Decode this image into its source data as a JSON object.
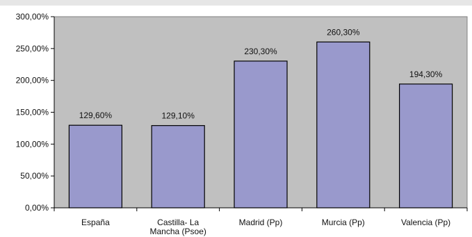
{
  "chart_data": {
    "type": "bar",
    "title": "",
    "xlabel": "",
    "ylabel": "",
    "categories": [
      [
        "España"
      ],
      [
        "Castilla- La",
        "Mancha (Psoe)"
      ],
      [
        "Madrid (Pp)"
      ],
      [
        "Murcia (Pp)"
      ],
      [
        "Valencia (Pp)"
      ]
    ],
    "values": [
      129.6,
      129.1,
      230.3,
      260.3,
      194.3
    ],
    "value_labels": [
      "129,60%",
      "129,10%",
      "230,30%",
      "260,30%",
      "194,30%"
    ],
    "ylim": [
      0,
      300
    ],
    "yticks": [
      0,
      50,
      100,
      150,
      200,
      250,
      300
    ],
    "ytick_labels": [
      "0,00%",
      "50,00%",
      "100,00%",
      "150,00%",
      "200,00%",
      "250,00%",
      "300,00%"
    ],
    "grid": false,
    "legend": "none",
    "colors": {
      "bar_fill": "#9999cc",
      "bar_stroke": "#000000",
      "plot_background": "#c0c0c0",
      "axis": "#000000"
    }
  }
}
